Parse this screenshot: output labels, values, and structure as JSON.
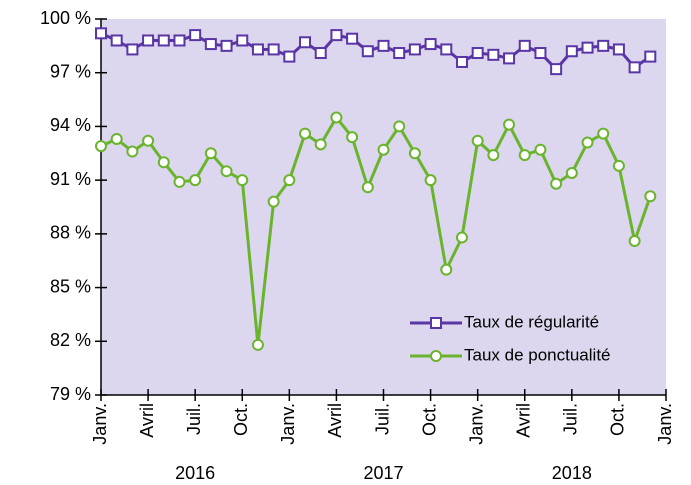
{
  "chart_data": {
    "type": "line",
    "x": [
      0,
      1,
      2,
      3,
      4,
      5,
      6,
      7,
      8,
      9,
      10,
      11,
      12,
      13,
      14,
      15,
      16,
      17,
      18,
      19,
      20,
      21,
      22,
      23,
      24,
      25,
      26,
      27,
      28,
      29,
      30,
      31,
      32,
      33,
      34,
      35
    ],
    "xlim": [
      0,
      36
    ],
    "xticks": [
      {
        "value": 0,
        "label": "Janv."
      },
      {
        "value": 3,
        "label": "Avril"
      },
      {
        "value": 6,
        "label": "Juil."
      },
      {
        "value": 9,
        "label": "Oct."
      },
      {
        "value": 12,
        "label": "Janv."
      },
      {
        "value": 15,
        "label": "Avril"
      },
      {
        "value": 18,
        "label": "Juil."
      },
      {
        "value": 21,
        "label": "Oct."
      },
      {
        "value": 24,
        "label": "Janv."
      },
      {
        "value": 27,
        "label": "Avril"
      },
      {
        "value": 30,
        "label": "Juil."
      },
      {
        "value": 33,
        "label": "Oct."
      },
      {
        "value": 36,
        "label": "Janv."
      }
    ],
    "years": [
      "2016",
      "2017",
      "2018"
    ],
    "ylim": [
      79,
      100
    ],
    "yticks": [
      {
        "value": 79,
        "label": "79 %"
      },
      {
        "value": 82,
        "label": "82 %"
      },
      {
        "value": 85,
        "label": "85 %"
      },
      {
        "value": 88,
        "label": "88 %"
      },
      {
        "value": 91,
        "label": "91 %"
      },
      {
        "value": 94,
        "label": "94 %"
      },
      {
        "value": 97,
        "label": "97 %"
      },
      {
        "value": 100,
        "label": "100 %"
      }
    ],
    "grid": false,
    "legend": "lower right",
    "background": "#dcd7ee",
    "series": [
      {
        "name": "Taux de régularité",
        "color": "#5a35a5",
        "marker": "square",
        "values": [
          99.2,
          98.8,
          98.3,
          98.8,
          98.8,
          98.8,
          99.1,
          98.6,
          98.5,
          98.8,
          98.3,
          98.3,
          97.9,
          98.7,
          98.1,
          99.1,
          98.9,
          98.2,
          98.5,
          98.1,
          98.3,
          98.6,
          98.3,
          97.6,
          98.1,
          98.0,
          97.8,
          98.5,
          98.1,
          97.2,
          98.2,
          98.4,
          98.5,
          98.3,
          97.3,
          97.9
        ]
      },
      {
        "name": "Taux de ponctualité",
        "color": "#6ab42d",
        "marker": "circle",
        "values": [
          92.9,
          93.3,
          92.6,
          93.2,
          92.0,
          90.9,
          91.0,
          92.5,
          91.5,
          91.0,
          81.8,
          89.8,
          91.0,
          93.6,
          93.0,
          94.5,
          93.4,
          90.6,
          92.7,
          94.0,
          92.5,
          91.0,
          86.0,
          87.8,
          93.2,
          92.4,
          94.1,
          92.4,
          92.7,
          90.8,
          91.4,
          93.1,
          93.6,
          91.8,
          87.6,
          90.1
        ]
      }
    ]
  }
}
